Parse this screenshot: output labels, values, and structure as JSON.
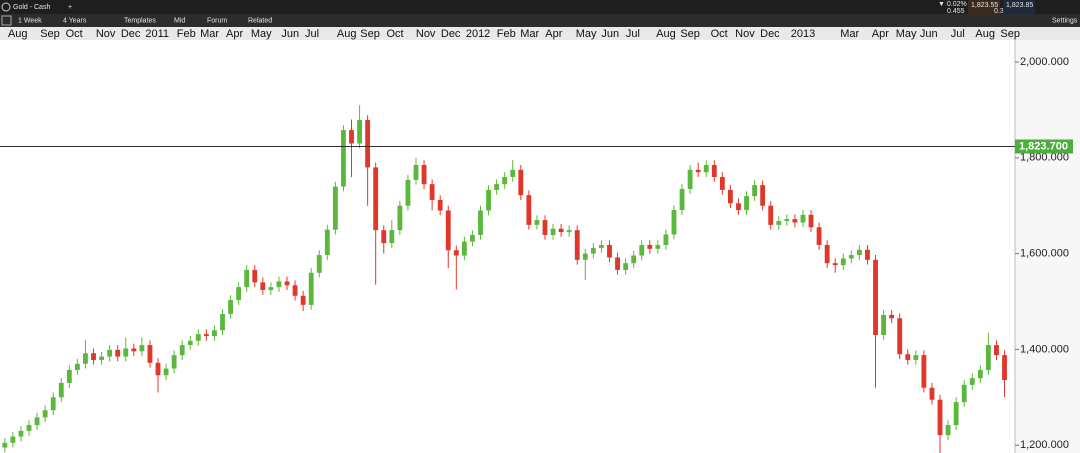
{
  "header": {
    "title": "Gold - Cash",
    "toolbar": [
      "1 Week",
      "4 Years",
      "Templates",
      "Mid",
      "Forum",
      "Related"
    ],
    "settings": "Settings",
    "change": "▼ 0.02%",
    "change_value": "0.455",
    "bid": "1,823.55",
    "ask": "1,823.85",
    "spread": "0.30"
  },
  "chart_data": {
    "type": "candlestick",
    "up_color": "#5cb83c",
    "down_color": "#e0372b",
    "categories": [
      null,
      null,
      null,
      null,
      null,
      null,
      null,
      null,
      null,
      null,
      null,
      null,
      null,
      null,
      null,
      null,
      null,
      null,
      null,
      null,
      null,
      null,
      null,
      null,
      null,
      null,
      null,
      null,
      null,
      null,
      null,
      null,
      null,
      null,
      null,
      null,
      null,
      null,
      null,
      null,
      null,
      null,
      null,
      null,
      null,
      null,
      null,
      null,
      null,
      null,
      null,
      null,
      null,
      null,
      null,
      null,
      null,
      null,
      null,
      null,
      null,
      null,
      null,
      null,
      null,
      null,
      null,
      null,
      null,
      null,
      null,
      null,
      null,
      null,
      null,
      null,
      null,
      null,
      null,
      null,
      null,
      null,
      null,
      null,
      null,
      null,
      null,
      null,
      null,
      null,
      null,
      null,
      null,
      null,
      null,
      null,
      null,
      null,
      null,
      null,
      null,
      null,
      null,
      null,
      null,
      null,
      null,
      null,
      null,
      null,
      null,
      null,
      null,
      null,
      null,
      null,
      null,
      null,
      null,
      null,
      null,
      null,
      null,
      null,
      null
    ],
    "open": [
      1195,
      1205,
      1218,
      1230,
      1242,
      1258,
      1273,
      1300,
      1330,
      1357,
      1370,
      1392,
      1378,
      1385,
      1399,
      1385,
      1402,
      1396,
      1409,
      1372,
      1346,
      1360,
      1388,
      1409,
      1418,
      1432,
      1428,
      1440,
      1474,
      1503,
      1530,
      1566,
      1540,
      1524,
      1530,
      1542,
      1534,
      1512,
      1493,
      1560,
      1597,
      1650,
      1740,
      1858,
      1830,
      1879,
      1780,
      1649,
      1622,
      1649,
      1700,
      1754,
      1785,
      1745,
      1712,
      1690,
      1607,
      1596,
      1625,
      1639,
      1690,
      1733,
      1745,
      1760,
      1775,
      1722,
      1660,
      1670,
      1639,
      1652,
      1645,
      1649,
      1587,
      1600,
      1612,
      1618,
      1592,
      1566,
      1580,
      1596,
      1618,
      1610,
      1618,
      1640,
      1691,
      1735,
      1775,
      1770,
      1785,
      1760,
      1733,
      1705,
      1691,
      1720,
      1743,
      1700,
      1660,
      1668,
      1672,
      1665,
      1681,
      1655,
      1618,
      1580,
      1576,
      1590,
      1597,
      1608,
      1587,
      1430,
      1472,
      1465,
      1390,
      1378,
      1388,
      1320,
      1295,
      1221,
      1242,
      1290,
      1326,
      1340,
      1357,
      1409,
      1388
    ],
    "high": [
      1215,
      1228,
      1240,
      1252,
      1268,
      1283,
      1310,
      1340,
      1367,
      1380,
      1420,
      1402,
      1395,
      1409,
      1409,
      1425,
      1412,
      1425,
      1419,
      1382,
      1370,
      1398,
      1419,
      1428,
      1442,
      1442,
      1450,
      1484,
      1513,
      1540,
      1576,
      1576,
      1550,
      1540,
      1552,
      1552,
      1544,
      1522,
      1570,
      1607,
      1660,
      1750,
      1868,
      1880,
      1910,
      1889,
      1790,
      1659,
      1670,
      1710,
      1764,
      1800,
      1795,
      1755,
      1722,
      1700,
      1617,
      1635,
      1649,
      1700,
      1743,
      1755,
      1770,
      1795,
      1785,
      1732,
      1680,
      1680,
      1662,
      1662,
      1659,
      1659,
      1610,
      1622,
      1628,
      1628,
      1602,
      1590,
      1606,
      1628,
      1628,
      1628,
      1650,
      1701,
      1745,
      1785,
      1790,
      1795,
      1795,
      1770,
      1743,
      1715,
      1730,
      1753,
      1753,
      1710,
      1678,
      1682,
      1682,
      1691,
      1691,
      1665,
      1628,
      1590,
      1600,
      1607,
      1618,
      1618,
      1597,
      1482,
      1482,
      1475,
      1400,
      1398,
      1398,
      1330,
      1305,
      1252,
      1300,
      1336,
      1350,
      1367,
      1435,
      1419,
      1398
    ],
    "low": [
      1185,
      1195,
      1208,
      1220,
      1232,
      1248,
      1263,
      1290,
      1320,
      1347,
      1360,
      1368,
      1368,
      1375,
      1375,
      1375,
      1386,
      1386,
      1362,
      1310,
      1336,
      1350,
      1378,
      1399,
      1408,
      1418,
      1418,
      1430,
      1464,
      1493,
      1520,
      1530,
      1514,
      1514,
      1520,
      1524,
      1502,
      1480,
      1483,
      1550,
      1587,
      1640,
      1730,
      1760,
      1820,
      1700,
      1535,
      1600,
      1612,
      1639,
      1690,
      1744,
      1735,
      1690,
      1680,
      1570,
      1525,
      1586,
      1615,
      1629,
      1680,
      1723,
      1735,
      1750,
      1712,
      1650,
      1650,
      1629,
      1629,
      1635,
      1635,
      1577,
      1545,
      1590,
      1602,
      1582,
      1556,
      1556,
      1570,
      1586,
      1600,
      1600,
      1608,
      1630,
      1681,
      1725,
      1760,
      1760,
      1750,
      1723,
      1695,
      1681,
      1681,
      1710,
      1690,
      1650,
      1650,
      1658,
      1655,
      1655,
      1645,
      1608,
      1570,
      1560,
      1566,
      1580,
      1587,
      1577,
      1320,
      1420,
      1455,
      1380,
      1368,
      1368,
      1310,
      1285,
      1180,
      1211,
      1232,
      1280,
      1316,
      1330,
      1347,
      1378,
      1300
    ],
    "close": [
      1205,
      1218,
      1230,
      1242,
      1258,
      1273,
      1300,
      1330,
      1357,
      1370,
      1392,
      1378,
      1385,
      1399,
      1385,
      1402,
      1396,
      1409,
      1372,
      1346,
      1360,
      1388,
      1409,
      1418,
      1432,
      1428,
      1440,
      1474,
      1503,
      1530,
      1566,
      1540,
      1524,
      1530,
      1542,
      1534,
      1512,
      1493,
      1560,
      1597,
      1650,
      1740,
      1858,
      1830,
      1879,
      1780,
      1649,
      1622,
      1649,
      1700,
      1754,
      1785,
      1745,
      1712,
      1690,
      1607,
      1596,
      1625,
      1639,
      1690,
      1733,
      1745,
      1760,
      1775,
      1722,
      1660,
      1670,
      1639,
      1652,
      1645,
      1649,
      1587,
      1600,
      1612,
      1618,
      1592,
      1566,
      1580,
      1596,
      1618,
      1610,
      1618,
      1640,
      1691,
      1735,
      1775,
      1770,
      1785,
      1760,
      1733,
      1705,
      1691,
      1720,
      1743,
      1700,
      1660,
      1668,
      1672,
      1665,
      1681,
      1655,
      1618,
      1580,
      1576,
      1590,
      1597,
      1608,
      1587,
      1430,
      1472,
      1465,
      1390,
      1378,
      1388,
      1320,
      1295,
      1221,
      1242,
      1290,
      1326,
      1340,
      1357,
      1409,
      1388,
      1336
    ],
    "xlim": [
      -0.6,
      125.3
    ],
    "xticks": [
      {
        "value": 1.6,
        "label": "Aug"
      },
      {
        "value": 5.6,
        "label": "Sep"
      },
      {
        "value": 8.6,
        "label": "Oct"
      },
      {
        "value": 12.5,
        "label": "Nov"
      },
      {
        "value": 15.6,
        "label": "Dec"
      },
      {
        "value": 18.9,
        "label": "2011"
      },
      {
        "value": 22.5,
        "label": "Feb"
      },
      {
        "value": 25.4,
        "label": "Mar"
      },
      {
        "value": 28.5,
        "label": "Apr"
      },
      {
        "value": 31.8,
        "label": "May"
      },
      {
        "value": 35.4,
        "label": "Jun"
      },
      {
        "value": 38.1,
        "label": "Jul"
      },
      {
        "value": 42.4,
        "label": "Aug"
      },
      {
        "value": 45.3,
        "label": "Sep"
      },
      {
        "value": 48.4,
        "label": "Oct"
      },
      {
        "value": 52.2,
        "label": "Nov"
      },
      {
        "value": 55.3,
        "label": "Dec"
      },
      {
        "value": 58.7,
        "label": "2012"
      },
      {
        "value": 62.2,
        "label": "Feb"
      },
      {
        "value": 65.1,
        "label": "Mar"
      },
      {
        "value": 68.1,
        "label": "Apr"
      },
      {
        "value": 72.1,
        "label": "May"
      },
      {
        "value": 75.1,
        "label": "Jun"
      },
      {
        "value": 77.9,
        "label": "Jul"
      },
      {
        "value": 82.0,
        "label": "Aug"
      },
      {
        "value": 85.0,
        "label": "Sep"
      },
      {
        "value": 88.6,
        "label": "Oct"
      },
      {
        "value": 91.8,
        "label": "Nov"
      },
      {
        "value": 94.9,
        "label": "Dec"
      },
      {
        "value": 99.0,
        "label": "2013"
      },
      {
        "value": 104.8,
        "label": "Mar"
      },
      {
        "value": 108.6,
        "label": "Apr"
      },
      {
        "value": 111.8,
        "label": "May"
      },
      {
        "value": 114.6,
        "label": "Jun"
      },
      {
        "value": 118.2,
        "label": "Jul"
      },
      {
        "value": 121.6,
        "label": "Aug"
      },
      {
        "value": 124.7,
        "label": "Sep"
      }
    ],
    "ylim": [
      1183.7,
      2046
    ],
    "yticks": [
      {
        "value": 2000,
        "label": "2,000.000"
      },
      {
        "value": 1800,
        "label": "1,800.000"
      },
      {
        "value": 1600,
        "label": "1,600.000"
      },
      {
        "value": 1400,
        "label": "1,400.000"
      },
      {
        "value": 1200,
        "label": "1,200.000"
      }
    ],
    "price_line": {
      "value": 1823.7,
      "label": "1,823.700",
      "color": "#4cae3c"
    }
  }
}
